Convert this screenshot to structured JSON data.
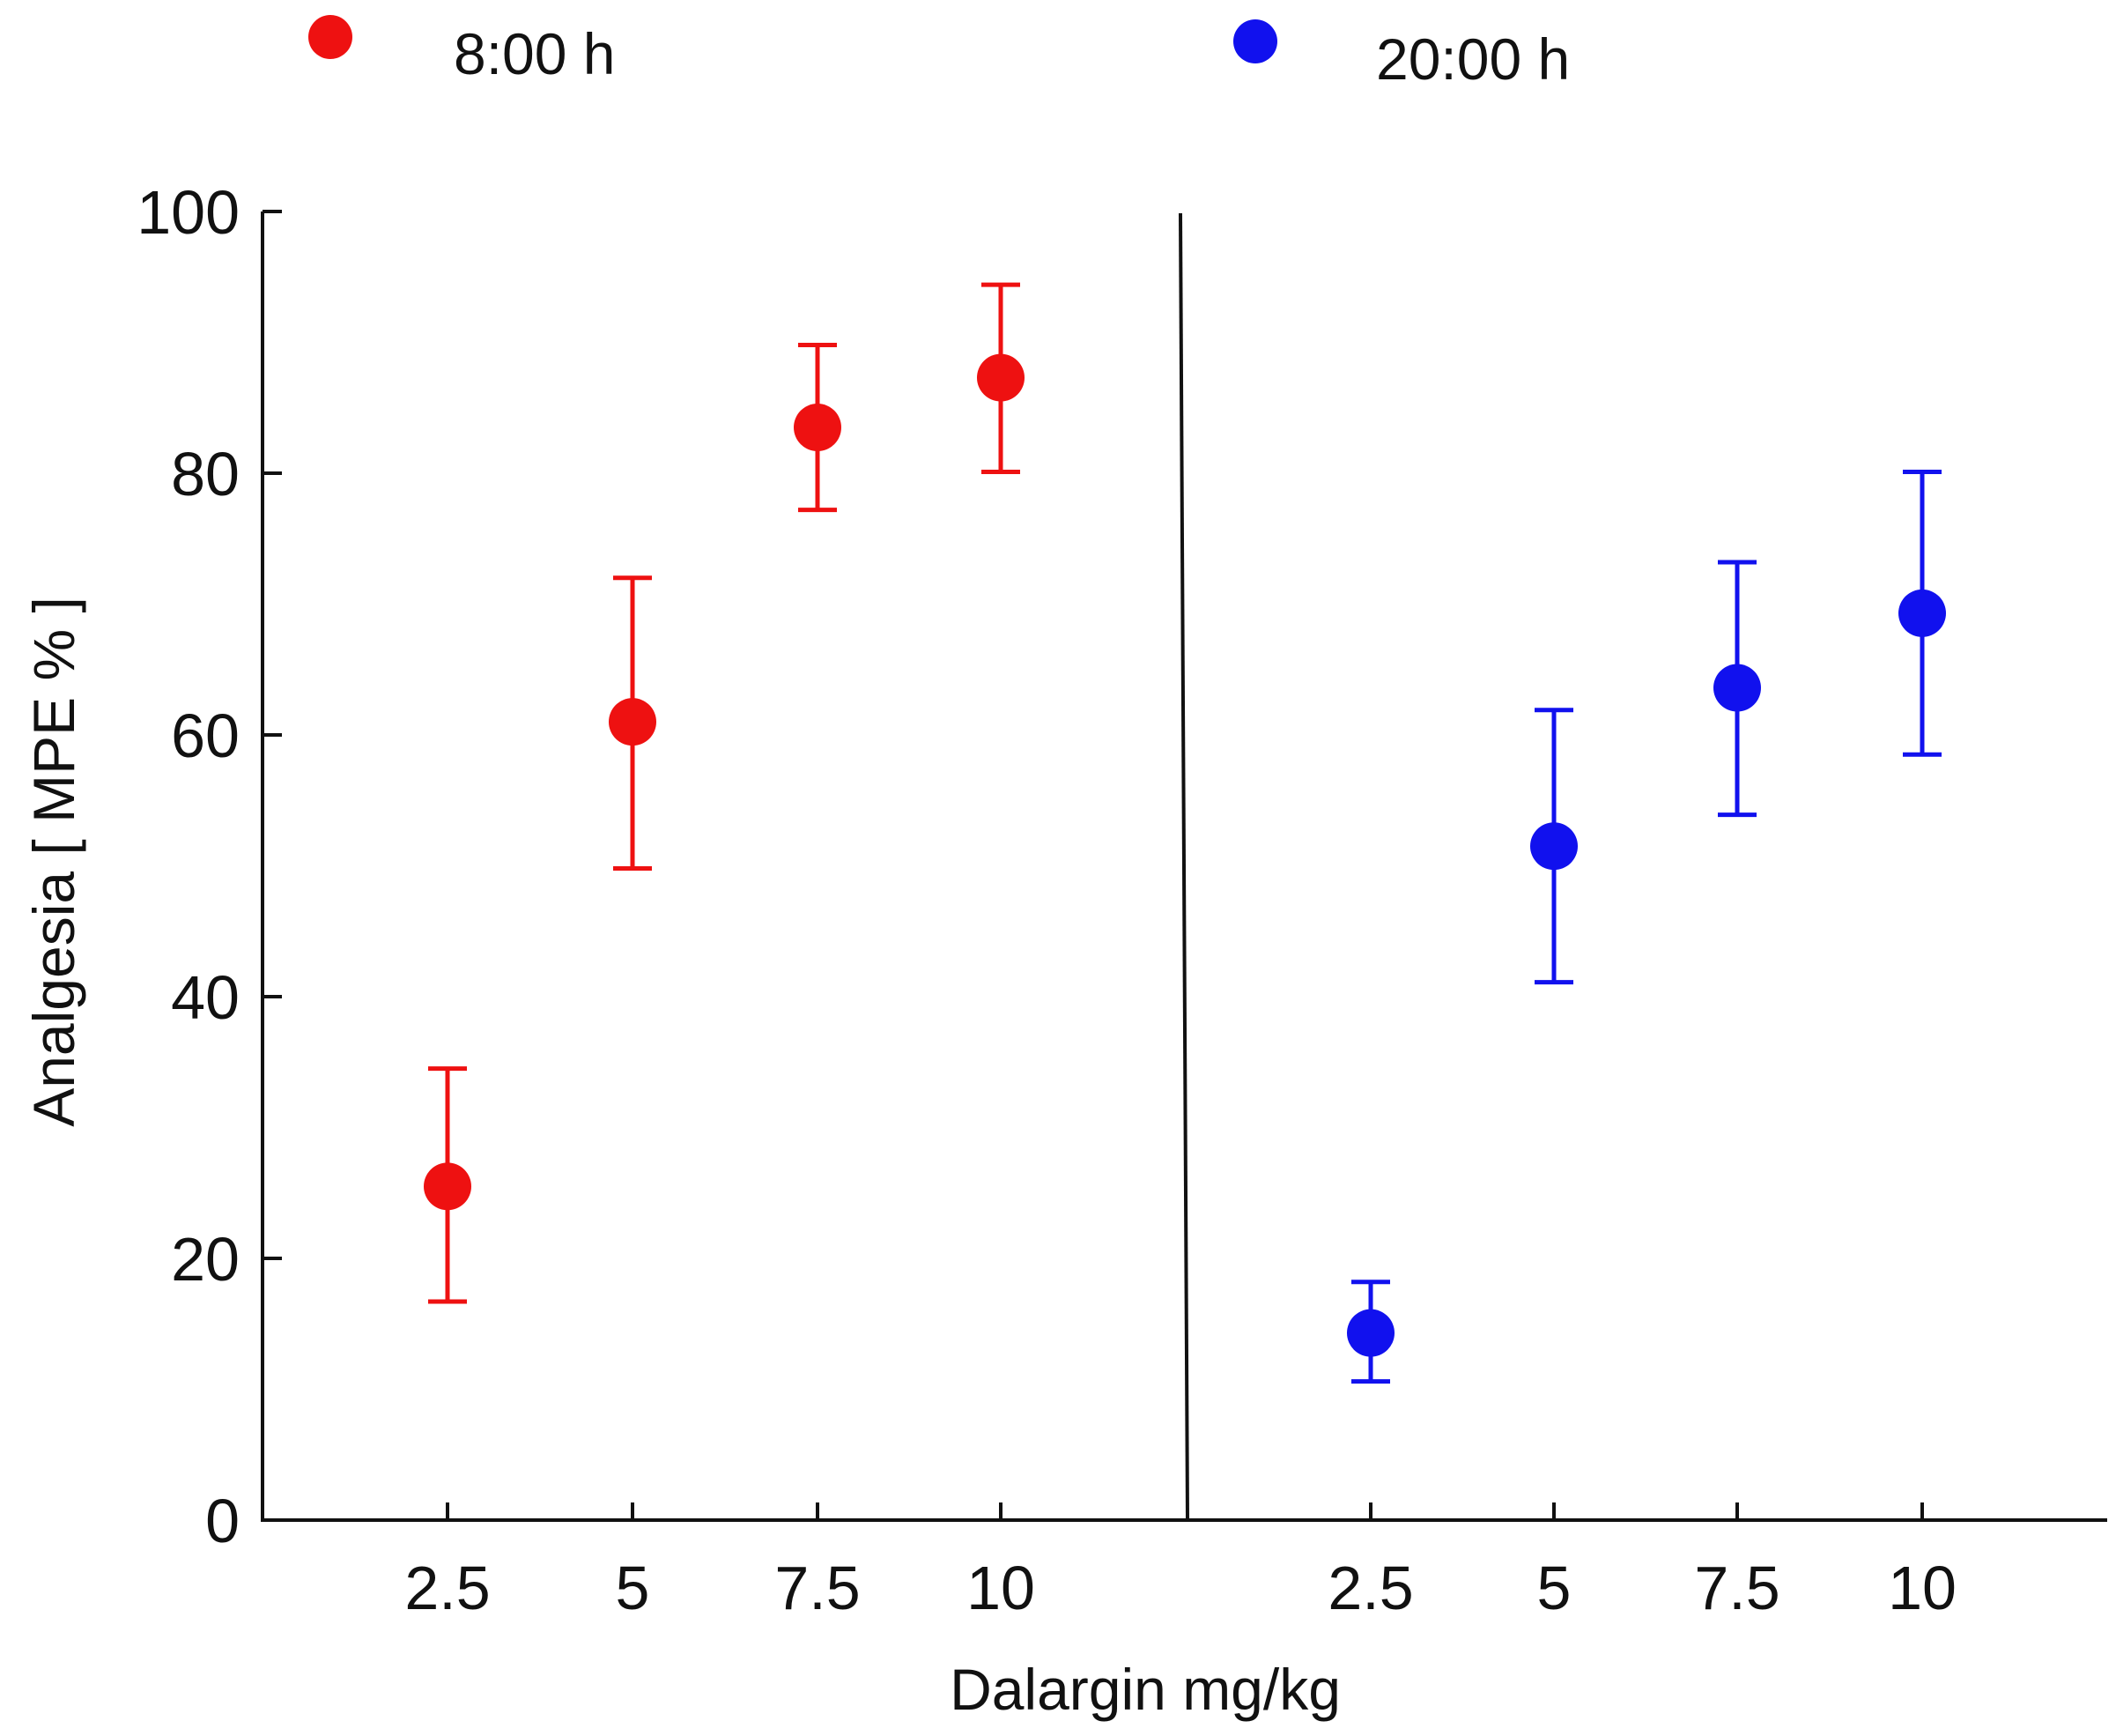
{
  "chart_data": {
    "type": "scatter",
    "title": "",
    "xlabel": "Dalargin mg/kg",
    "ylabel": "Analgesia [ MPE % ]",
    "ylim": [
      0,
      100
    ],
    "yticks": [
      0,
      20,
      40,
      60,
      80,
      100
    ],
    "error_bars": true,
    "grid": false,
    "legend_position": "top",
    "divider_between_panels": true,
    "series": [
      {
        "name": "8:00 h",
        "color": "#ee1111",
        "categories": [
          "2.5",
          "5",
          "7.5",
          "10"
        ],
        "values": [
          25.5,
          61,
          83.5,
          87.3
        ],
        "error_low": [
          16.7,
          49.8,
          77.2,
          80.1
        ],
        "error_high": [
          34.5,
          72,
          89.8,
          94.4
        ]
      },
      {
        "name": "20:00 h",
        "color": "#1111ee",
        "categories": [
          "2.5",
          "5",
          "7.5",
          "10"
        ],
        "values": [
          14.3,
          51.5,
          63.6,
          69.3
        ],
        "error_low": [
          10.6,
          41.1,
          53.9,
          58.5
        ],
        "error_high": [
          18.2,
          61.9,
          73.2,
          80.1
        ]
      }
    ]
  }
}
